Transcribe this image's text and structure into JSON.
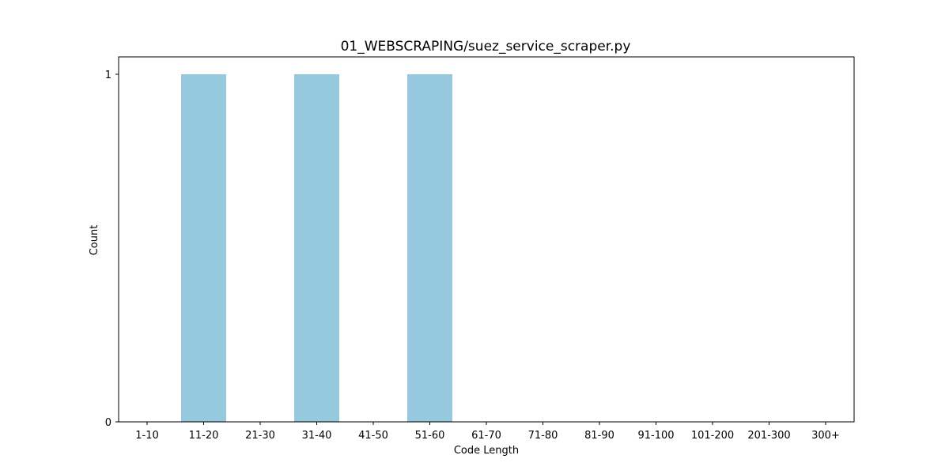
{
  "chart_data": {
    "type": "bar",
    "title": "01_WEBSCRAPING/suez_service_scraper.py",
    "xlabel": "Code Length",
    "ylabel": "Count",
    "categories": [
      "1-10",
      "11-20",
      "21-30",
      "31-40",
      "41-50",
      "51-60",
      "61-70",
      "71-80",
      "81-90",
      "91-100",
      "101-200",
      "201-300",
      "300+"
    ],
    "values": [
      0,
      1,
      0,
      1,
      0,
      1,
      0,
      0,
      0,
      0,
      0,
      0,
      0
    ],
    "ylim": [
      0,
      1.05
    ],
    "yticks": [
      0,
      1
    ],
    "bar_color": "#96c9de",
    "grid": false,
    "legend": "none"
  }
}
